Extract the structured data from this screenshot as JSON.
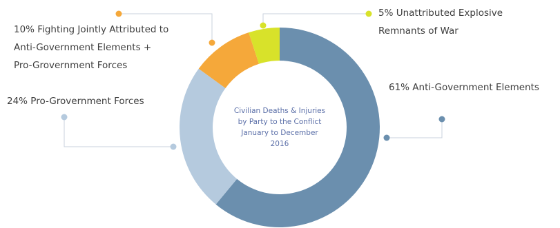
{
  "chart_data": {
    "type": "pie",
    "variant": "donut",
    "center_label": [
      "Civilian Deaths & Injuries",
      "by Party to the Conflict",
      "January to December",
      "2016"
    ],
    "slices": [
      {
        "name": "Anti-Government Elements",
        "value": 61,
        "label_lines": [
          "61% Anti-Government Elements"
        ],
        "color": "#6b8fae"
      },
      {
        "name": "Pro-Government Forces",
        "value": 24,
        "label_lines": [
          "24% Pro-Grovernment Forces"
        ],
        "color": "#b5cade"
      },
      {
        "name": "Fighting Jointly Attributed to Anti-Government Elements + Pro-Government Forces",
        "value": 10,
        "label_lines": [
          "10% Fighting Jointly Attributed to",
          "Anti-Government Elements +",
          "Pro-Grovernment Forces"
        ],
        "color": "#f5a83a"
      },
      {
        "name": "Unattributed Explosive Remnants of War",
        "value": 5,
        "label_lines": [
          "5% Unattributed Explosive",
          "Remnants of War"
        ],
        "color": "#d8e22a"
      }
    ]
  }
}
